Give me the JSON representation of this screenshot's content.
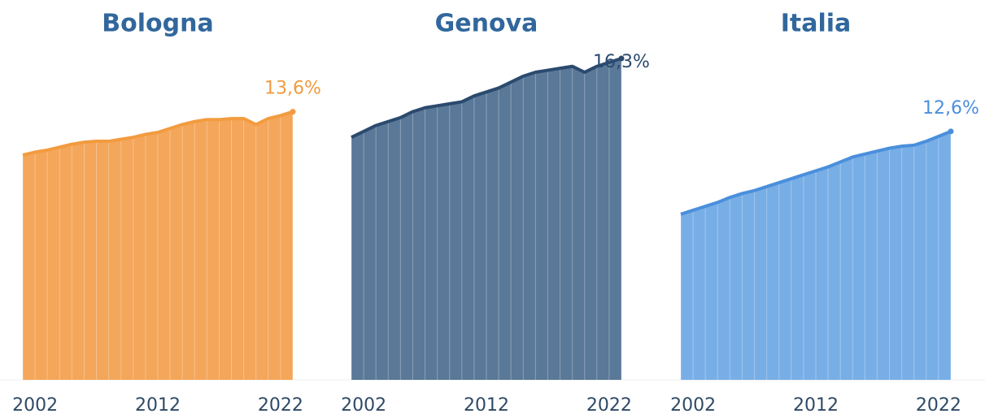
{
  "chart_data": [
    {
      "type": "area",
      "title": "Bologna",
      "color": "#f29b3f",
      "fill": "#f4a65a",
      "x": [
        2001,
        2002,
        2003,
        2004,
        2005,
        2006,
        2007,
        2008,
        2009,
        2010,
        2011,
        2012,
        2013,
        2014,
        2015,
        2016,
        2017,
        2018,
        2019,
        2020,
        2021,
        2022,
        2023
      ],
      "values": [
        11.4,
        11.55,
        11.65,
        11.8,
        11.95,
        12.05,
        12.1,
        12.1,
        12.2,
        12.3,
        12.45,
        12.55,
        12.75,
        12.95,
        13.1,
        13.2,
        13.2,
        13.25,
        13.25,
        12.95,
        13.25,
        13.4,
        13.6
      ],
      "value_labels": [
        null,
        null,
        null,
        null,
        null,
        null,
        null,
        null,
        null,
        null,
        null,
        null,
        null,
        null,
        null,
        null,
        null,
        null,
        null,
        null,
        null,
        null,
        "13,6%"
      ],
      "xlim": [
        2001,
        2023
      ],
      "xticks": [
        2002,
        2012,
        2022
      ],
      "ylim": [
        0,
        17
      ]
    },
    {
      "type": "area",
      "title": "Genova",
      "color": "#2b4a6e",
      "fill": "#5a7898",
      "x": [
        2001,
        2002,
        2003,
        2004,
        2005,
        2006,
        2007,
        2008,
        2009,
        2010,
        2011,
        2012,
        2013,
        2014,
        2015,
        2016,
        2017,
        2018,
        2019,
        2020,
        2021,
        2022,
        2023
      ],
      "values": [
        12.3,
        12.6,
        12.9,
        13.1,
        13.3,
        13.6,
        13.8,
        13.9,
        14.0,
        14.1,
        14.4,
        14.6,
        14.8,
        15.1,
        15.4,
        15.6,
        15.7,
        15.8,
        15.9,
        15.6,
        15.9,
        16.1,
        16.3
      ],
      "value_labels": [
        null,
        null,
        null,
        null,
        null,
        null,
        null,
        null,
        null,
        null,
        null,
        null,
        null,
        null,
        null,
        null,
        null,
        null,
        null,
        null,
        null,
        null,
        "16,3%"
      ],
      "xlim": [
        2001,
        2023
      ],
      "xticks": [
        2002,
        2012,
        2022
      ],
      "ylim": [
        0,
        17
      ]
    },
    {
      "type": "area",
      "title": "Italia",
      "color": "#4a8fdc",
      "fill": "#78aee6",
      "x": [
        2001,
        2002,
        2003,
        2004,
        2005,
        2006,
        2007,
        2008,
        2009,
        2010,
        2011,
        2012,
        2013,
        2014,
        2015,
        2016,
        2017,
        2018,
        2019,
        2020,
        2021,
        2022,
        2023
      ],
      "values": [
        8.4,
        8.6,
        8.8,
        9.0,
        9.25,
        9.45,
        9.6,
        9.8,
        10.0,
        10.2,
        10.4,
        10.6,
        10.8,
        11.05,
        11.3,
        11.45,
        11.6,
        11.75,
        11.85,
        11.9,
        12.1,
        12.35,
        12.6
      ],
      "value_labels": [
        null,
        null,
        null,
        null,
        null,
        null,
        null,
        null,
        null,
        null,
        null,
        null,
        null,
        null,
        null,
        null,
        null,
        null,
        null,
        null,
        null,
        null,
        "12,6%"
      ],
      "xlim": [
        2001,
        2023
      ],
      "xticks": [
        2002,
        2012,
        2022
      ],
      "ylim": [
        0,
        17
      ]
    }
  ]
}
